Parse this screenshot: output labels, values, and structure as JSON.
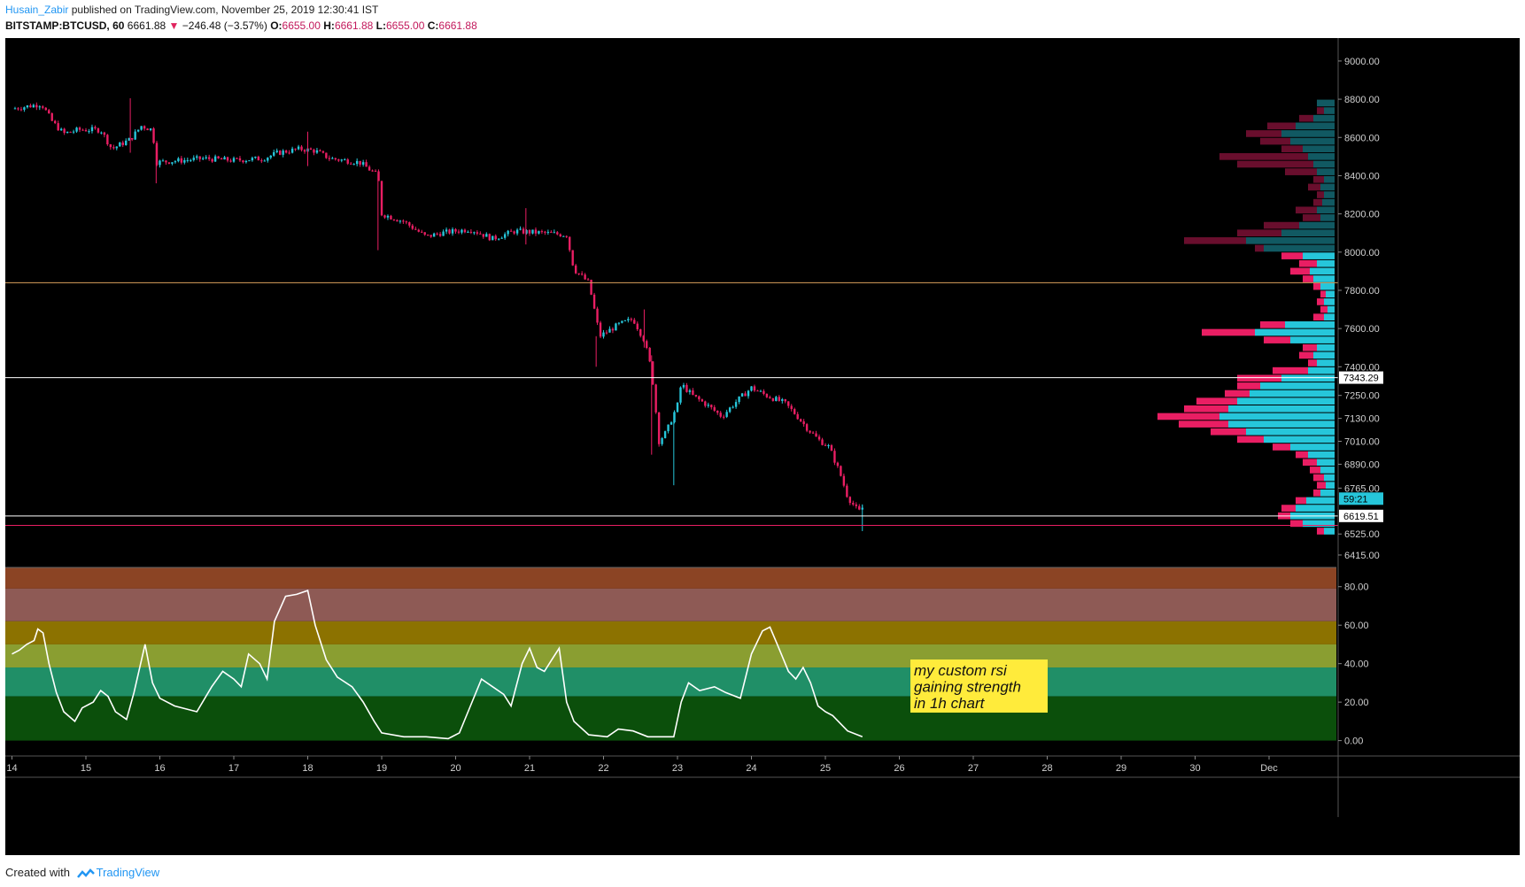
{
  "header": {
    "author": "Husain_Zabir",
    "published": "published on TradingView.com, November 25, 2019 12:30:41 IST",
    "symbol": "BITSTAMP:BTCUSD, 60",
    "last": "6661.88",
    "change": "−246.48 (−3.57%)",
    "open_label": "O:",
    "open": "6655.00",
    "high_label": "H:",
    "high": "6661.88",
    "low_label": "L:",
    "low": "6655.00",
    "close_label": "C:",
    "close": "6661.88"
  },
  "footer": {
    "created_with": "Created with",
    "brand": "TradingView"
  },
  "colors": {
    "background": "#000000",
    "up": "#26c6da",
    "down": "#e91e63",
    "orange_line": "#d9a05b",
    "white_line": "#ffffff",
    "pink_line": "#e91e63",
    "rsi_line": "#ffffff",
    "annotation_bg": "#ffeb3b"
  },
  "chart_data": [
    {
      "type": "candlestick",
      "ylim": [
        6350,
        9120
      ],
      "y_ticks": [
        6415,
        6525,
        6765,
        6890,
        7010,
        7130,
        7250,
        7400,
        7600,
        7800,
        8000,
        8200,
        8400,
        8600,
        8800,
        9000
      ],
      "x_ticks": [
        "14",
        "15",
        "16",
        "17",
        "18",
        "19",
        "20",
        "21",
        "22",
        "23",
        "24",
        "25",
        "26",
        "27",
        "28",
        "29",
        "30",
        "Dec"
      ],
      "price_path": [
        [
          14.0,
          8750
        ],
        [
          14.4,
          8775
        ],
        [
          14.55,
          8680
        ],
        [
          14.7,
          8620
        ],
        [
          14.9,
          8640
        ],
        [
          15.2,
          8640
        ],
        [
          15.35,
          8540
        ],
        [
          15.6,
          8590
        ],
        [
          15.75,
          8660
        ],
        [
          15.9,
          8640
        ],
        [
          15.95,
          8470
        ],
        [
          16.3,
          8480
        ],
        [
          16.6,
          8490
        ],
        [
          17.0,
          8480
        ],
        [
          17.4,
          8490
        ],
        [
          17.6,
          8520
        ],
        [
          17.9,
          8540
        ],
        [
          18.1,
          8530
        ],
        [
          18.3,
          8490
        ],
        [
          18.7,
          8470
        ],
        [
          18.95,
          8400
        ],
        [
          19.0,
          8200
        ],
        [
          19.3,
          8160
        ],
        [
          19.6,
          8080
        ],
        [
          19.8,
          8100
        ],
        [
          20.2,
          8120
        ],
        [
          20.5,
          8070
        ],
        [
          20.8,
          8110
        ],
        [
          21.2,
          8100
        ],
        [
          21.5,
          8090
        ],
        [
          21.6,
          7910
        ],
        [
          21.8,
          7840
        ],
        [
          21.95,
          7560
        ],
        [
          22.2,
          7620
        ],
        [
          22.4,
          7650
        ],
        [
          22.55,
          7540
        ],
        [
          22.65,
          7380
        ],
        [
          22.75,
          7010
        ],
        [
          22.85,
          7060
        ],
        [
          23.0,
          7200
        ],
        [
          23.05,
          7310
        ],
        [
          23.2,
          7250
        ],
        [
          23.4,
          7200
        ],
        [
          23.6,
          7140
        ],
        [
          23.8,
          7220
        ],
        [
          24.0,
          7290
        ],
        [
          24.2,
          7250
        ],
        [
          24.45,
          7210
        ],
        [
          24.6,
          7150
        ],
        [
          24.75,
          7080
        ],
        [
          24.9,
          7020
        ],
        [
          25.05,
          6980
        ],
        [
          25.2,
          6840
        ],
        [
          25.3,
          6720
        ],
        [
          25.45,
          6640
        ],
        [
          25.5,
          6661.88
        ]
      ],
      "spikes": [
        {
          "x": 15.6,
          "high": 8805,
          "low": 8520
        },
        {
          "x": 15.95,
          "high": 8560,
          "low": 8360
        },
        {
          "x": 18.0,
          "high": 8630,
          "low": 8450
        },
        {
          "x": 18.95,
          "high": 8410,
          "low": 8010
        },
        {
          "x": 20.95,
          "high": 8230,
          "low": 8040
        },
        {
          "x": 21.9,
          "high": 7560,
          "low": 7400
        },
        {
          "x": 22.55,
          "high": 7700,
          "low": 7500
        },
        {
          "x": 22.65,
          "high": 7460,
          "low": 6940
        },
        {
          "x": 22.95,
          "high": 7160,
          "low": 6780
        },
        {
          "x": 25.5,
          "high": 6680,
          "low": 6540
        }
      ],
      "horizontal_lines": [
        {
          "price": 7840,
          "color": "#d9a05b"
        },
        {
          "price": 7343.29,
          "color": "#ffffff",
          "label": "7343.29"
        },
        {
          "price": 6619.51,
          "color": "#ffffff",
          "label": "6619.51"
        },
        {
          "price": 6570,
          "color": "#e91e63"
        }
      ],
      "countdown_label": "59:21",
      "volume_profile_top": 8800,
      "volume_profile_bottom": 6520,
      "volume_profile_bins": [
        [
          8780,
          0.05,
          0.1
        ],
        [
          8740,
          0.1,
          0.06
        ],
        [
          8700,
          0.2,
          0.12
        ],
        [
          8660,
          0.38,
          0.22
        ],
        [
          8620,
          0.5,
          0.3
        ],
        [
          8580,
          0.42,
          0.25
        ],
        [
          8540,
          0.3,
          0.18
        ],
        [
          8500,
          0.65,
          0.15
        ],
        [
          8460,
          0.55,
          0.12
        ],
        [
          8420,
          0.28,
          0.1
        ],
        [
          8380,
          0.12,
          0.06
        ],
        [
          8340,
          0.15,
          0.08
        ],
        [
          8300,
          0.1,
          0.06
        ],
        [
          8260,
          0.12,
          0.07
        ],
        [
          8220,
          0.22,
          0.1
        ],
        [
          8180,
          0.18,
          0.08
        ],
        [
          8140,
          0.4,
          0.2
        ],
        [
          8100,
          0.55,
          0.3
        ],
        [
          8060,
          0.85,
          0.5
        ],
        [
          8020,
          0.45,
          0.4
        ],
        [
          7980,
          0.3,
          0.18
        ],
        [
          7940,
          0.2,
          0.1
        ],
        [
          7900,
          0.25,
          0.14
        ],
        [
          7860,
          0.18,
          0.12
        ],
        [
          7820,
          0.12,
          0.08
        ],
        [
          7780,
          0.08,
          0.05
        ],
        [
          7740,
          0.1,
          0.06
        ],
        [
          7700,
          0.08,
          0.04
        ],
        [
          7660,
          0.12,
          0.06
        ],
        [
          7620,
          0.42,
          0.28
        ],
        [
          7580,
          0.75,
          0.45
        ],
        [
          7540,
          0.4,
          0.25
        ],
        [
          7500,
          0.18,
          0.1
        ],
        [
          7460,
          0.2,
          0.12
        ],
        [
          7420,
          0.15,
          0.1
        ],
        [
          7380,
          0.35,
          0.15
        ],
        [
          7340,
          0.55,
          0.3
        ],
        [
          7300,
          0.55,
          0.42
        ],
        [
          7260,
          0.62,
          0.48
        ],
        [
          7220,
          0.78,
          0.55
        ],
        [
          7180,
          0.85,
          0.6
        ],
        [
          7140,
          1.0,
          0.65
        ],
        [
          7100,
          0.88,
          0.6
        ],
        [
          7060,
          0.7,
          0.5
        ],
        [
          7020,
          0.55,
          0.4
        ],
        [
          6980,
          0.35,
          0.25
        ],
        [
          6940,
          0.22,
          0.15
        ],
        [
          6900,
          0.18,
          0.1
        ],
        [
          6860,
          0.14,
          0.08
        ],
        [
          6820,
          0.12,
          0.06
        ],
        [
          6780,
          0.1,
          0.05
        ],
        [
          6740,
          0.12,
          0.08
        ],
        [
          6700,
          0.22,
          0.16
        ],
        [
          6660,
          0.3,
          0.22
        ],
        [
          6620,
          0.32,
          0.25
        ],
        [
          6580,
          0.25,
          0.18
        ],
        [
          6540,
          0.1,
          0.06
        ]
      ]
    },
    {
      "type": "line",
      "name": "",
      "ylim": [
        -8,
        90
      ],
      "y_ticks": [
        0,
        20,
        40,
        60,
        80
      ],
      "bands": [
        {
          "from": 79,
          "to": 90,
          "color": "#8b4424"
        },
        {
          "from": 62,
          "to": 79,
          "color": "#8e5a55"
        },
        {
          "from": 50,
          "to": 62,
          "color": "#8c7200"
        },
        {
          "from": 38,
          "to": 50,
          "color": "#8a9e31"
        },
        {
          "from": 23,
          "to": 38,
          "color": "#208f67"
        },
        {
          "from": 0,
          "to": 23,
          "color": "#0b4f0b"
        }
      ],
      "annotation": [
        "my custom rsi",
        "gaining strength",
        "in 1h chart"
      ],
      "rsi_points": [
        [
          14.0,
          45
        ],
        [
          14.1,
          47
        ],
        [
          14.2,
          50
        ],
        [
          14.3,
          52
        ],
        [
          14.35,
          58
        ],
        [
          14.42,
          56
        ],
        [
          14.5,
          40
        ],
        [
          14.6,
          25
        ],
        [
          14.7,
          15
        ],
        [
          14.85,
          10
        ],
        [
          14.95,
          17
        ],
        [
          15.1,
          20
        ],
        [
          15.2,
          26
        ],
        [
          15.3,
          23
        ],
        [
          15.4,
          15
        ],
        [
          15.55,
          11
        ],
        [
          15.65,
          25
        ],
        [
          15.8,
          50
        ],
        [
          15.9,
          30
        ],
        [
          16.0,
          22
        ],
        [
          16.2,
          18
        ],
        [
          16.5,
          15
        ],
        [
          16.7,
          28
        ],
        [
          16.85,
          36
        ],
        [
          17.0,
          32
        ],
        [
          17.1,
          28
        ],
        [
          17.2,
          45
        ],
        [
          17.35,
          40
        ],
        [
          17.45,
          32
        ],
        [
          17.55,
          62
        ],
        [
          17.7,
          75
        ],
        [
          17.85,
          76
        ],
        [
          18.0,
          78
        ],
        [
          18.1,
          60
        ],
        [
          18.25,
          42
        ],
        [
          18.4,
          33
        ],
        [
          18.6,
          28
        ],
        [
          18.75,
          20
        ],
        [
          18.9,
          10
        ],
        [
          19.0,
          4
        ],
        [
          19.3,
          2
        ],
        [
          19.6,
          2
        ],
        [
          19.9,
          1
        ],
        [
          20.05,
          4
        ],
        [
          20.2,
          18
        ],
        [
          20.35,
          32
        ],
        [
          20.5,
          28
        ],
        [
          20.65,
          24
        ],
        [
          20.75,
          18
        ],
        [
          20.9,
          40
        ],
        [
          21.0,
          48
        ],
        [
          21.1,
          38
        ],
        [
          21.2,
          36
        ],
        [
          21.3,
          42
        ],
        [
          21.4,
          48
        ],
        [
          21.5,
          20
        ],
        [
          21.6,
          10
        ],
        [
          21.8,
          3
        ],
        [
          22.05,
          2
        ],
        [
          22.2,
          6
        ],
        [
          22.4,
          5
        ],
        [
          22.6,
          2
        ],
        [
          22.95,
          2
        ],
        [
          23.05,
          20
        ],
        [
          23.15,
          30
        ],
        [
          23.3,
          26
        ],
        [
          23.5,
          28
        ],
        [
          23.65,
          25
        ],
        [
          23.85,
          22
        ],
        [
          24.0,
          45
        ],
        [
          24.15,
          57
        ],
        [
          24.25,
          59
        ],
        [
          24.35,
          50
        ],
        [
          24.5,
          36
        ],
        [
          24.6,
          32
        ],
        [
          24.7,
          38
        ],
        [
          24.8,
          30
        ],
        [
          24.9,
          18
        ],
        [
          25.0,
          15
        ],
        [
          25.1,
          13
        ],
        [
          25.3,
          5
        ],
        [
          25.5,
          2
        ]
      ]
    }
  ]
}
